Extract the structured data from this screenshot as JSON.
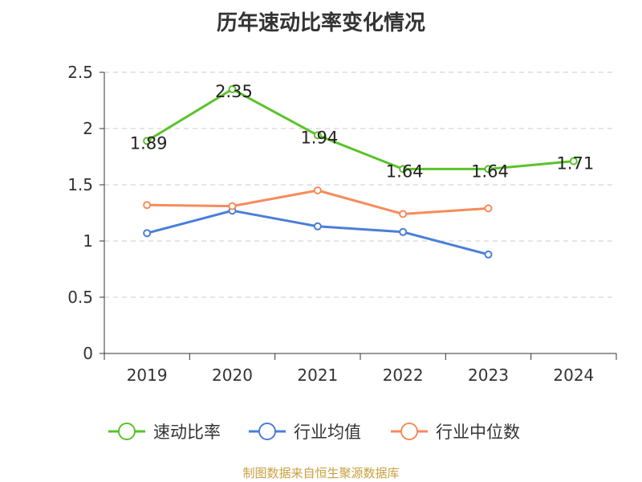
{
  "title": "历年速动比率变化情况",
  "source": "制图数据来自恒生聚源数据库",
  "chart_data": {
    "type": "line",
    "categories": [
      "2019",
      "2020",
      "2021",
      "2022",
      "2023",
      "2024"
    ],
    "ylim": [
      0,
      2.5
    ],
    "yticks": [
      0,
      0.5,
      1,
      1.5,
      2,
      2.5
    ],
    "ytick_labels": [
      "0",
      "0.5",
      "1",
      "1.5",
      "2",
      "2.5"
    ],
    "grid": true,
    "legend_position": "bottom",
    "series": [
      {
        "name": "速动比率",
        "color": "#5bc22a",
        "values": [
          1.89,
          2.35,
          1.94,
          1.64,
          1.64,
          1.71
        ],
        "labels": [
          "1.89",
          "2.35",
          "1.94",
          "1.64",
          "1.64",
          "1.71"
        ],
        "show_labels": true
      },
      {
        "name": "行业均值",
        "color": "#4a7fd8",
        "values": [
          1.07,
          1.27,
          1.13,
          1.08,
          0.88,
          null
        ],
        "show_labels": false
      },
      {
        "name": "行业中位数",
        "color": "#f58c5a",
        "values": [
          1.32,
          1.31,
          1.45,
          1.24,
          1.29,
          null
        ],
        "show_labels": false
      }
    ]
  }
}
